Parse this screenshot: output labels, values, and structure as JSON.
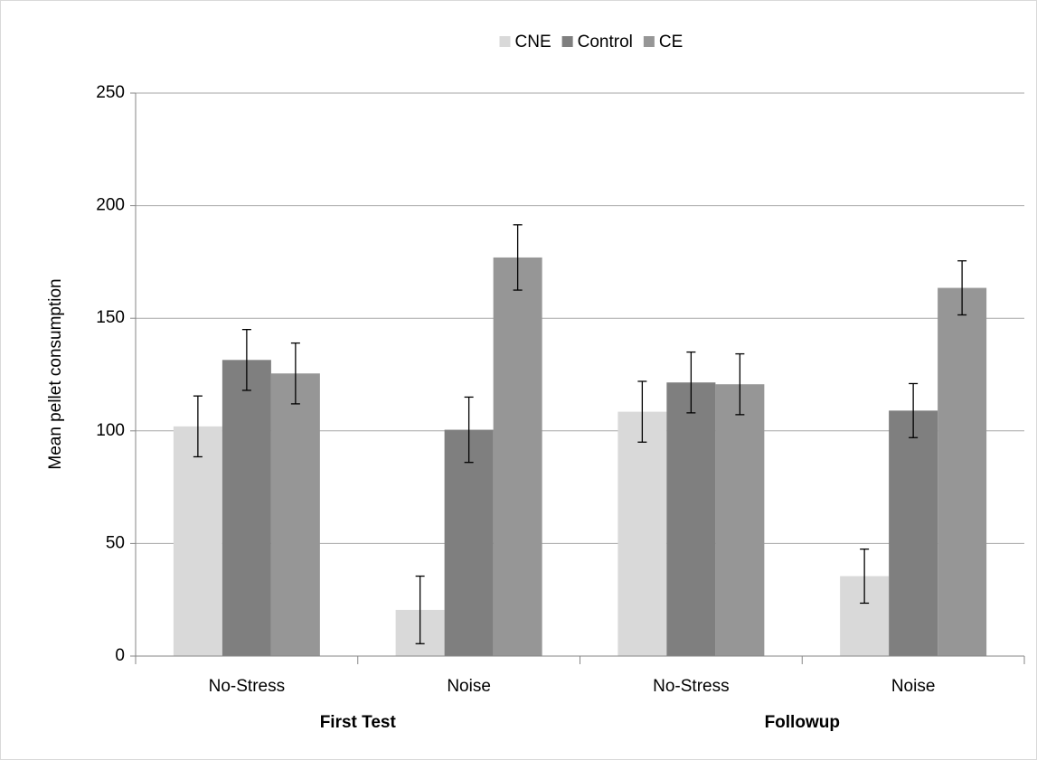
{
  "chart_data": {
    "type": "bar",
    "y_label": "Mean pellet consumption",
    "categories": [
      "No-Stress",
      "Noise",
      "No-Stress",
      "Noise"
    ],
    "groups": [
      "First Test",
      "Followup"
    ],
    "series": [
      {
        "name": "CNE",
        "color": "#d9d9d9",
        "values": [
          102,
          20.5,
          108.5,
          35.5
        ],
        "errors": [
          13.5,
          15,
          13.5,
          12
        ]
      },
      {
        "name": "Control",
        "color": "#7f7f7f",
        "values": [
          131.5,
          100.5,
          121.5,
          109
        ],
        "errors": [
          13.5,
          14.5,
          13.5,
          12
        ]
      },
      {
        "name": "CE",
        "color": "#969696",
        "values": [
          125.5,
          177,
          120.7,
          163.5
        ],
        "errors": [
          13.5,
          14.5,
          13.5,
          12
        ]
      }
    ],
    "ylim": [
      0,
      250
    ],
    "yticks": [
      0,
      50,
      100,
      150,
      200,
      250
    ],
    "grid": true,
    "legend": "top"
  }
}
